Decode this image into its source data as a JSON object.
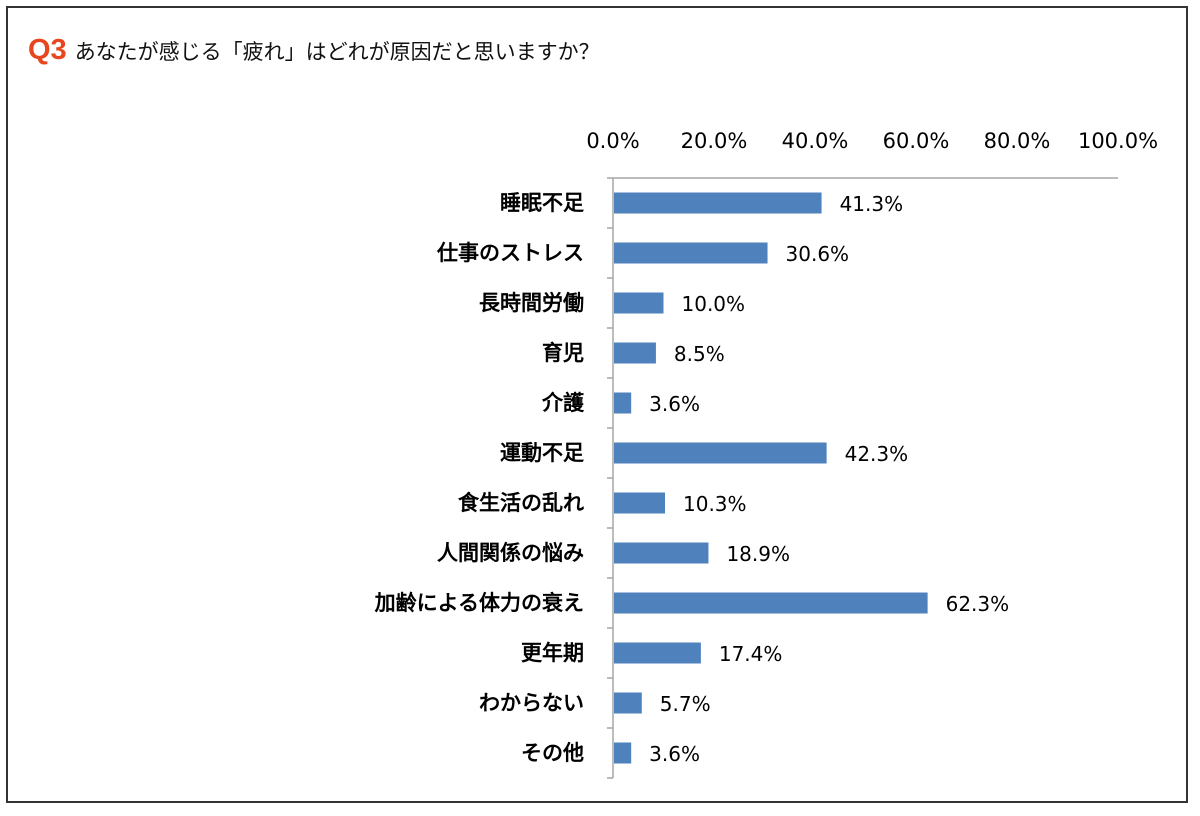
{
  "question": {
    "number": "Q3",
    "text": "あなたが感じる「疲れ」はどれが原因だと思いますか？"
  },
  "colors": {
    "bar": "#4f81bd",
    "accent": "#e8461e",
    "axis": "#a6a6a6"
  },
  "chart_data": {
    "type": "bar",
    "orientation": "horizontal",
    "title": "",
    "xlabel": "",
    "ylabel": "",
    "xlim": [
      0,
      100
    ],
    "axis_position": "top",
    "ticks": [
      "0.0%",
      "20.0%",
      "40.0%",
      "60.0%",
      "80.0%",
      "100.0%"
    ],
    "grid": false,
    "categories": [
      "睡眠不足",
      "仕事のストレス",
      "長時間労働",
      "育児",
      "介護",
      "運動不足",
      "食生活の乱れ",
      "人間関係の悩み",
      "加齢による体力の衰え",
      "更年期",
      "わからない",
      "その他"
    ],
    "values": [
      41.3,
      30.6,
      10.0,
      8.5,
      3.6,
      42.3,
      10.3,
      18.9,
      62.3,
      17.4,
      5.7,
      3.6
    ],
    "value_labels": [
      "41.3%",
      "30.6%",
      "10.0%",
      "8.5%",
      "3.6%",
      "42.3%",
      "10.3%",
      "18.9%",
      "62.3%",
      "17.4%",
      "5.7%",
      "3.6%"
    ]
  }
}
